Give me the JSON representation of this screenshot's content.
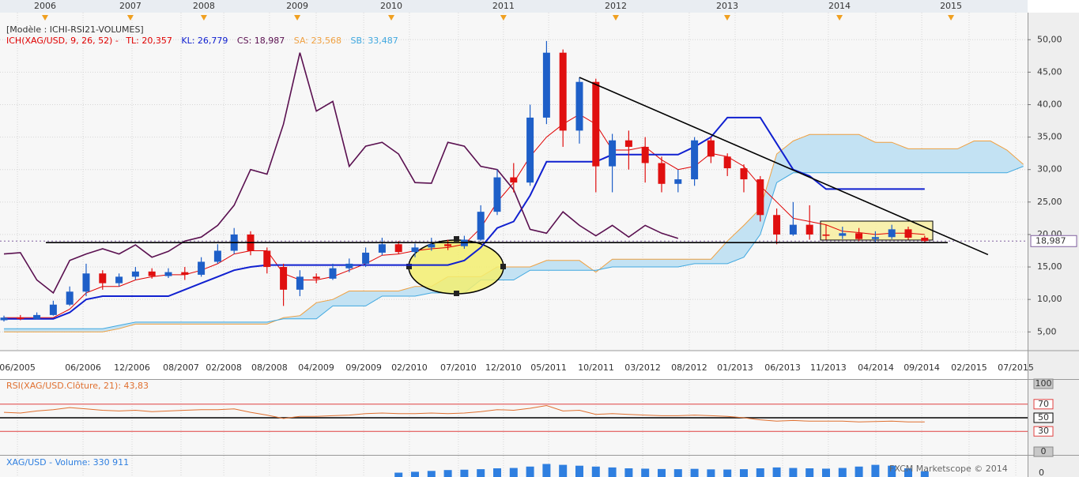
{
  "template": "[Modèle : ICHI-RSI21-VOLUMES]",
  "footer": "FXCM Marketscope © 2014",
  "chart_data": [
    {
      "type": "candlestick",
      "title": "ICH(XAG/USD, 9, 26, 52) -",
      "categories": [
        null,
        null,
        null,
        null,
        null,
        null,
        null,
        null,
        null,
        null,
        null,
        null,
        null,
        null,
        null,
        null,
        null,
        null,
        null,
        null,
        null,
        null,
        null,
        null,
        null,
        null,
        null,
        null,
        null,
        null,
        null,
        null,
        null,
        null,
        null,
        null,
        null,
        null,
        null,
        null,
        null,
        null,
        null,
        null,
        null,
        null,
        null,
        null,
        null,
        null,
        null,
        null,
        null,
        null,
        null,
        null,
        null,
        null,
        null,
        null,
        null,
        null,
        null
      ],
      "open": [
        6.8,
        7.2,
        7.0,
        7.6,
        9.2,
        11.2,
        14,
        12.5,
        13.5,
        14.3,
        13.6,
        14.2,
        13.8,
        15.8,
        17.5,
        20,
        17.5,
        15,
        11.5,
        13.5,
        13.2,
        14.8,
        15.5,
        17.2,
        18.5,
        17.3,
        18,
        18.5,
        18.2,
        19.2,
        23.5,
        28.8,
        28,
        38,
        48,
        36,
        43.5,
        30.5,
        34.5,
        33.5,
        31,
        27.8,
        28.5,
        34.5,
        32,
        30.2,
        28.5,
        23,
        20,
        21.5,
        20,
        19.8,
        20.2,
        19.3,
        19.6,
        20.8,
        19.5,
        null,
        null,
        null,
        null,
        null,
        null
      ],
      "high": [
        7.5,
        7.6,
        8.0,
        9.8,
        12,
        15.5,
        14.5,
        14,
        15,
        14.8,
        14.8,
        15,
        16.5,
        18.5,
        21,
        20.5,
        18,
        15.5,
        14.5,
        14,
        15.5,
        16.3,
        18,
        19.5,
        19,
        18.6,
        19.5,
        19.2,
        19.8,
        24.5,
        30,
        31,
        40,
        49.8,
        48.5,
        44.2,
        44,
        35.5,
        36,
        35,
        32,
        30,
        35,
        35,
        32.5,
        30.8,
        29,
        24,
        25,
        24.5,
        21.5,
        21.2,
        21,
        20.5,
        21.5,
        21.2,
        19.8,
        null,
        null,
        null,
        null,
        null,
        null
      ],
      "low": [
        6.6,
        6.8,
        6.9,
        7.5,
        9,
        10.5,
        11.5,
        12,
        13,
        13.2,
        13.3,
        13,
        13.5,
        15.5,
        17,
        16.8,
        14,
        9,
        10.5,
        12.5,
        13,
        14.2,
        15,
        16.8,
        17,
        16.5,
        17.5,
        17.6,
        17.8,
        19,
        23,
        26.5,
        27.5,
        37,
        33.5,
        34,
        26.5,
        26.5,
        30,
        28,
        26.5,
        26.5,
        27.5,
        31,
        29,
        26.5,
        22,
        18.5,
        19.8,
        19.2,
        19.2,
        19.3,
        19,
        18.8,
        19.3,
        19.2,
        18.8,
        null,
        null,
        null,
        null,
        null,
        null
      ],
      "close": [
        7.2,
        7.0,
        7.6,
        9.2,
        11.2,
        14,
        12.5,
        13.5,
        14.3,
        13.6,
        14.2,
        13.8,
        15.8,
        17.5,
        20,
        17.5,
        15,
        11.5,
        13.5,
        13.2,
        14.8,
        15.5,
        17.2,
        18.5,
        17.3,
        18,
        18.5,
        18.2,
        19.2,
        23.5,
        28.8,
        28,
        38,
        48,
        36,
        43.5,
        30.5,
        34.5,
        33.5,
        31,
        27.8,
        28.5,
        34.5,
        32,
        30.2,
        28.5,
        23,
        20,
        21.5,
        20,
        19.8,
        20.2,
        19.3,
        19.6,
        20.8,
        19.5,
        19.0,
        null,
        null,
        null,
        null,
        null,
        null
      ],
      "up_color": "#1e5fc8",
      "down_color": "#e01010",
      "series": [
        {
          "name": "TL: 20,357",
          "color": "#e00000",
          "width": 1,
          "values": [
            7.2,
            7.2,
            7.2,
            7.2,
            8.5,
            11,
            12,
            12,
            13,
            13.5,
            13.8,
            13.8,
            14.5,
            15.5,
            17,
            17.5,
            17.5,
            14,
            13,
            13,
            13.5,
            14.5,
            15.5,
            16.8,
            17,
            17.5,
            17.8,
            18,
            18.5,
            21,
            25,
            28,
            32,
            35,
            37,
            38.5,
            37,
            33,
            33,
            33.5,
            31.5,
            30,
            30.5,
            32.5,
            32,
            30.5,
            27.5,
            25,
            22.5,
            22,
            21.5,
            20.5,
            20.3,
            20,
            20.2,
            20.2,
            20,
            null,
            null,
            null,
            null,
            null,
            null
          ]
        },
        {
          "name": "KL: 26,779",
          "color": "#1020d0",
          "width": 2,
          "values": [
            7,
            7,
            7,
            7,
            8,
            10,
            10.5,
            10.5,
            10.5,
            10.5,
            10.5,
            11.5,
            12.5,
            13.5,
            14.5,
            15,
            15.3,
            15.3,
            15.3,
            15.3,
            15.3,
            15.3,
            15.3,
            15.3,
            15.3,
            15.3,
            15.3,
            15.3,
            16,
            18,
            21,
            22,
            26,
            31.2,
            31.2,
            31.2,
            31.2,
            32.3,
            32.3,
            32.3,
            32.3,
            32.3,
            33.5,
            35,
            38,
            38,
            38,
            34,
            30,
            29,
            27,
            27,
            27,
            27,
            27,
            27,
            27,
            null,
            null,
            null,
            null,
            null,
            null
          ]
        },
        {
          "name": "CS: 18,987",
          "color": "#5a1050",
          "width": 1.6,
          "values": [
            17,
            17.2,
            13,
            11,
            16,
            17,
            17.8,
            17,
            18.4,
            16.5,
            17.4,
            19,
            19.6,
            21.4,
            24.5,
            30,
            29.3,
            37,
            48,
            39,
            40.5,
            30.5,
            33.6,
            34.2,
            32.4,
            28,
            27.9,
            34.2,
            33.6,
            30.5,
            30,
            26.9,
            20.8,
            20.2,
            23.5,
            21.4,
            19.8,
            21.4,
            19.6,
            21.4,
            20.2,
            19.4,
            null,
            null,
            null,
            null,
            null,
            null,
            null,
            null,
            null,
            null,
            null,
            null,
            null,
            null,
            null,
            null,
            null,
            null,
            null,
            null,
            null
          ]
        },
        {
          "name": "SA: 23,568",
          "color": "#f0a040",
          "width": 1,
          "values": [
            5,
            5,
            5,
            5,
            5,
            5,
            5,
            5.5,
            6.2,
            6.2,
            6.2,
            6.2,
            6.2,
            6.2,
            6.2,
            6.2,
            6.2,
            7.2,
            7.5,
            9.5,
            10,
            11.3,
            11.3,
            11.3,
            11.3,
            12,
            12,
            13.5,
            13.5,
            13.5,
            15,
            15,
            15,
            16,
            16,
            16,
            14.2,
            16.2,
            16.2,
            16.2,
            16.2,
            16.2,
            16.2,
            16.2,
            19,
            21.4,
            24,
            32.4,
            34.4,
            35.4,
            35.4,
            35.4,
            35.4,
            34.2,
            34.2,
            33.2,
            33.2,
            33.2,
            33.2,
            34.4,
            34.4,
            33,
            30.8
          ]
        },
        {
          "name": "SB: 33,487",
          "color": "#40a8e0",
          "width": 1,
          "fill": "#c3e2f3",
          "values": [
            5.5,
            5.5,
            5.5,
            5.5,
            5.5,
            5.5,
            5.5,
            6,
            6.5,
            6.5,
            6.5,
            6.5,
            6.5,
            6.5,
            6.5,
            6.5,
            6.5,
            7,
            7,
            7,
            9,
            9,
            9,
            10.5,
            10.5,
            10.5,
            11,
            11,
            11,
            13,
            13,
            13,
            14.5,
            14.5,
            14.5,
            14.5,
            14.5,
            15,
            15,
            15,
            15,
            15,
            15.5,
            15.5,
            15.5,
            16.5,
            20,
            28,
            29.5,
            29.5,
            29.5,
            29.5,
            29.5,
            29.5,
            29.5,
            29.5,
            29.5,
            29.5,
            29.5,
            29.5,
            29.5,
            29.5,
            30.5
          ]
        }
      ],
      "xlim": [
        -0.24,
        62.26
      ],
      "xticks": [
        {
          "value": 0.82,
          "label": "06/2005"
        },
        {
          "value": 4.81,
          "label": "06/2006"
        },
        {
          "value": 7.79,
          "label": "12/2006"
        },
        {
          "value": 10.77,
          "label": "08/2007"
        },
        {
          "value": 13.37,
          "label": "02/2008"
        },
        {
          "value": 16.15,
          "label": "08/2008"
        },
        {
          "value": 18.99,
          "label": "04/2009"
        },
        {
          "value": 21.88,
          "label": "09/2009"
        },
        {
          "value": 24.66,
          "label": "02/2010"
        },
        {
          "value": 27.64,
          "label": "07/2010"
        },
        {
          "value": 30.38,
          "label": "12/2010"
        },
        {
          "value": 33.13,
          "label": "05/2011"
        },
        {
          "value": 36.01,
          "label": "10/2011"
        },
        {
          "value": 38.85,
          "label": "03/2012"
        },
        {
          "value": 41.68,
          "label": "08/2012"
        },
        {
          "value": 44.47,
          "label": "01/2013"
        },
        {
          "value": 47.36,
          "label": "06/2013"
        },
        {
          "value": 50.14,
          "label": "11/2013"
        },
        {
          "value": 53.03,
          "label": "04/2014"
        },
        {
          "value": 55.82,
          "label": "09/2014"
        },
        {
          "value": 58.7,
          "label": "02/2015"
        },
        {
          "value": 61.54,
          "label": "07/2015"
        }
      ],
      "top_xticks": [
        {
          "value": 2.5,
          "label": "2006"
        },
        {
          "value": 7.69,
          "label": "2007"
        },
        {
          "value": 12.16,
          "label": "2008"
        },
        {
          "value": 17.84,
          "label": "2009"
        },
        {
          "value": 23.56,
          "label": "2010"
        },
        {
          "value": 30.38,
          "label": "2011"
        },
        {
          "value": 37.21,
          "label": "2012"
        },
        {
          "value": 43.99,
          "label": "2013"
        },
        {
          "value": 50.82,
          "label": "2014"
        },
        {
          "value": 57.6,
          "label": "2015"
        }
      ],
      "ylim": [
        2.6,
        52.1
      ],
      "yticks": [
        {
          "value": 5,
          "label": "5,00"
        },
        {
          "value": 10,
          "label": "10,00"
        },
        {
          "value": 15,
          "label": "15,00"
        },
        {
          "value": 20,
          "label": "20,00"
        },
        {
          "value": 25,
          "label": "25,00"
        },
        {
          "value": 30,
          "label": "30,00"
        },
        {
          "value": 35,
          "label": "35,00"
        },
        {
          "value": 40,
          "label": "40,00"
        },
        {
          "value": 45,
          "label": "45,00"
        },
        {
          "value": 50,
          "label": "50,00"
        }
      ],
      "grid": true,
      "last_price": {
        "value": 18.987,
        "label": "18,987"
      },
      "lines": [
        {
          "x": [
            2.55,
            57.4
          ],
          "y": [
            18.75,
            18.75
          ]
        },
        {
          "x": [
            35.0,
            59.85
          ],
          "y": [
            44.2,
            16.9
          ]
        }
      ]
    },
    {
      "type": "line",
      "title": "RSI(XAG/USD.Clôture, 21): 43,83",
      "color": "#e07030",
      "values": [
        58,
        57,
        60,
        62,
        65,
        63,
        61,
        60,
        61,
        59,
        60,
        61,
        62,
        62,
        63,
        58,
        54,
        49,
        52,
        52,
        53,
        54,
        56,
        57,
        56,
        56,
        57,
        56,
        57,
        59,
        62,
        61,
        64,
        68,
        60,
        61,
        55,
        56,
        55,
        54,
        53,
        53,
        54,
        53,
        52,
        50,
        47,
        45,
        46,
        45,
        45,
        45,
        44,
        44.5,
        45,
        44,
        43.83,
        null,
        null,
        null,
        null,
        null,
        null
      ],
      "ylim": [
        0,
        100
      ],
      "yticks": [
        0,
        30,
        50,
        70,
        100
      ],
      "levels": [
        {
          "value": 70,
          "color": "#e04040"
        },
        {
          "value": 50,
          "color": "#000000"
        },
        {
          "value": 30,
          "color": "#e04040"
        }
      ]
    },
    {
      "type": "bar",
      "title": "XAG/USD - Volume: 330 911",
      "color": "#2f7fe0",
      "values": [
        null,
        null,
        null,
        null,
        null,
        null,
        null,
        null,
        null,
        null,
        null,
        null,
        null,
        null,
        null,
        null,
        null,
        null,
        null,
        null,
        null,
        null,
        null,
        null,
        250000,
        300000,
        350000,
        400000,
        420000,
        450000,
        500000,
        520000,
        600000,
        750000,
        700000,
        650000,
        600000,
        550000,
        500000,
        480000,
        460000,
        450000,
        470000,
        440000,
        430000,
        450000,
        500000,
        550000,
        520000,
        500000,
        480000,
        520000,
        600000,
        700000,
        650000,
        500000,
        330911,
        null,
        null,
        null,
        null,
        null,
        null
      ],
      "ylim": [
        0,
        1000000
      ],
      "yticks": [
        0
      ]
    }
  ]
}
